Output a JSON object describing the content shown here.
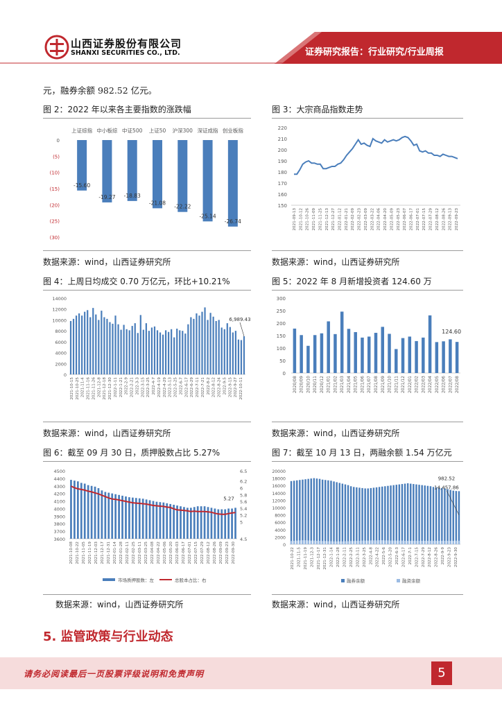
{
  "header": {
    "company_cn": "山西证券股份有限公司",
    "company_en": "SHANXI SECURITIES CO., LTD.",
    "report_type": "证券研究报告：行业研究/行业周报",
    "brand_color": "#c0282e"
  },
  "intro_text": "元，融券余额 982.52 亿元。",
  "source_text": "数据来源：wind，山西证券研究所",
  "figures": {
    "fig2": {
      "title": "图 2：2022 年以来各主要指数的涨跌幅"
    },
    "fig3": {
      "title": "图 3：大宗商品指数走势"
    },
    "fig4": {
      "title": "图 4：上周日均成交 0.70 万亿元，环比+10.21%"
    },
    "fig5": {
      "title": "图 5：2022 年 8 月新增投资者 124.60 万"
    },
    "fig6": {
      "title": "图 6：截至 09 月 30 日，质押股数占比 5.27%"
    },
    "fig7": {
      "title": "图 7：截至 10 月 13 日，两融余额 1.54 万亿元"
    }
  },
  "section_title": "5. 监管政策与行业动态",
  "footer": {
    "disclaimer": "请务必阅读最后一页股票评级说明和免责声明",
    "page_number": "5"
  },
  "chart_data": [
    {
      "id": "fig2",
      "type": "bar",
      "categories": [
        "上证综指",
        "中小板综",
        "中证500",
        "上证50",
        "沪深300",
        "深证成指",
        "创业板指"
      ],
      "values": [
        -15.6,
        -19.27,
        -18.83,
        -21.08,
        -22.22,
        -25.14,
        -26.74
      ],
      "data_labels": [
        "-15.60",
        "-19.27",
        "-18.83",
        "-21.08",
        "-22.22",
        "-25.14",
        "-26.74"
      ],
      "yticks": [
        "0",
        "(5)",
        "(10)",
        "(15)",
        "(20)",
        "(25)",
        "(30)"
      ],
      "ylim": [
        -30,
        0
      ],
      "color": "#4a7ebb"
    },
    {
      "id": "fig3",
      "type": "line",
      "ylim": [
        150,
        220
      ],
      "yticks": [
        150,
        160,
        170,
        180,
        190,
        200,
        210,
        220
      ],
      "xticks": [
        "2021-09-13",
        "2021-10-12",
        "2021-10-26",
        "2021-11-09",
        "2021-11-25",
        "2021-12-13",
        "2021-12-27",
        "2022-01-12",
        "2022-01-21",
        "2022-02-09",
        "2022-02-23",
        "2022-03-09",
        "2022-03-22",
        "2022-04-06",
        "2022-04-20",
        "2022-05-09",
        "2022-05-23",
        "2022-06-07",
        "2022-06-17",
        "2022-07-01",
        "2022-07-15",
        "2022-07-29",
        "2022-08-12",
        "2022-08-26",
        "2022-09-13",
        "2022-09-23"
      ],
      "values": [
        178,
        178,
        182,
        187,
        189,
        190,
        188,
        188,
        187,
        187,
        183,
        183,
        184,
        185,
        185,
        187,
        188,
        191,
        195,
        198,
        201,
        205,
        209,
        205,
        206,
        204,
        203,
        210,
        208,
        207,
        206,
        209,
        207,
        208,
        209,
        208,
        209,
        211,
        212,
        211,
        208,
        204,
        205,
        199,
        198,
        199,
        197,
        197,
        195,
        195,
        194,
        196,
        195,
        194,
        194,
        193,
        192
      ],
      "color": "#4a7ebb"
    },
    {
      "id": "fig4",
      "type": "bar",
      "ylim": [
        0,
        14000
      ],
      "yticks": [
        0,
        2000,
        4000,
        6000,
        8000,
        10000,
        12000,
        14000
      ],
      "xticks": [
        "2021-10-15",
        "2021-10-25",
        "2021-11-4",
        "2021-11-16",
        "2021-11-26",
        "2021-12-8",
        "2021-12-18",
        "2021-12-30",
        "2022-1-11",
        "2022-1-21",
        "2022-2-9",
        "2022-2-21",
        "2022-3-3",
        "2022-3-15",
        "2022-3-25",
        "2022-4-7",
        "2022-4-19",
        "2022-4-29",
        "2022-5-13",
        "2022-5-25",
        "2022-6-7",
        "2022-6-17",
        "2022-6-29",
        "2022-7-11",
        "2022-7-21",
        "2022-8-2",
        "2022-8-12",
        "2022-8-24",
        "2022-9-5",
        "2022-9-15",
        "2022-9-27",
        "2022-10-11"
      ],
      "values": [
        9800,
        10200,
        10800,
        11200,
        10800,
        11500,
        11800,
        10500,
        12200,
        11000,
        10000,
        11700,
        10500,
        10200,
        9600,
        9300,
        10800,
        9200,
        8200,
        9100,
        8300,
        8100,
        8900,
        9400,
        7600,
        10900,
        8200,
        9400,
        8000,
        8600,
        8800,
        8100,
        7700,
        7300,
        8100,
        7800,
        8300,
        6800,
        8400,
        8100,
        8000,
        7500,
        9200,
        10500,
        10200,
        11200,
        10800,
        11500,
        12300,
        10000,
        11300,
        10600,
        9800,
        10000,
        8600,
        8300,
        9400,
        8700,
        7700,
        8000,
        6400,
        6300,
        7000
      ],
      "last_label": "6,989.43",
      "color": "#4a7ebb"
    },
    {
      "id": "fig5",
      "type": "bar",
      "ylim": [
        0,
        300
      ],
      "yticks": [
        0,
        50,
        100,
        150,
        200,
        250,
        300
      ],
      "categories": [
        "2020/08",
        "2020/09",
        "2020/10",
        "2020/11",
        "2020/12",
        "2021/01",
        "2021/02",
        "2021/03",
        "2021/04",
        "2021/05",
        "2021/06",
        "2021/07",
        "2021/08",
        "2021/09",
        "2021/10",
        "2021/11",
        "2021/12",
        "2022/01",
        "2022/02",
        "2022/03",
        "2022/04",
        "2022/05",
        "2022/06",
        "2022/07",
        "2022/08"
      ],
      "values": [
        178,
        152,
        109,
        152,
        159,
        207,
        156,
        246,
        177,
        164,
        142,
        146,
        161,
        185,
        157,
        96,
        140,
        146,
        128,
        142,
        231,
        124,
        127,
        135,
        124.6
      ],
      "last_label": "124.60",
      "color": "#4a7ebb"
    },
    {
      "id": "fig6",
      "type": "bar-line",
      "ylim_left": [
        3600,
        4500
      ],
      "yticks_left": [
        3600,
        3700,
        3800,
        3900,
        4000,
        4100,
        4200,
        4300,
        4400,
        4500
      ],
      "ylim_right": [
        4.5,
        6.5
      ],
      "yticks_right": [
        4.5,
        5,
        5.2,
        5.4,
        5.6,
        5.8,
        6,
        6.2,
        6.5
      ],
      "ytick_labels_right": [
        "4.5",
        "5",
        "5.2",
        "5.4",
        "5.6",
        "5.8",
        "6",
        "6.2",
        "6.5"
      ],
      "xticks": [
        "2021-10-08",
        "2021-10-22",
        "2021-11-05",
        "2021-11-19",
        "2021-12-03",
        "2021-12-17",
        "2021-12-31",
        "2022-01-14",
        "2022-01-28",
        "2022-02-11",
        "2022-02-25",
        "2022-03-11",
        "2022-03-25",
        "2022-04-08",
        "2022-04-22",
        "2022-05-06",
        "2022-05-20",
        "2022-06-03",
        "2022-06-17",
        "2022-07-01",
        "2022-07-15",
        "2022-07-29",
        "2022-08-12",
        "2022-08-26",
        "2022-09-09",
        "2022-09-23",
        "2022-09-30"
      ],
      "bar_values": [
        4380,
        4370,
        4360,
        4340,
        4330,
        4310,
        4300,
        4290,
        4270,
        4240,
        4220,
        4210,
        4200,
        4190,
        4180,
        4170,
        4160,
        4150,
        4145,
        4140,
        4135,
        4130,
        4120,
        4110,
        4100,
        4090,
        4085,
        4080,
        4070,
        4060,
        4050,
        4040,
        4030,
        4020,
        4010,
        4010,
        4020,
        4030,
        4030,
        4030,
        4020,
        4010,
        4000,
        3990,
        3990,
        3990,
        4000,
        4000,
        4010
      ],
      "line_values": [
        6.05,
        6.0,
        5.97,
        5.95,
        5.93,
        5.9,
        5.88,
        5.85,
        5.82,
        5.78,
        5.74,
        5.7,
        5.67,
        5.66,
        5.64,
        5.62,
        5.6,
        5.58,
        5.56,
        5.55,
        5.54,
        5.53,
        5.52,
        5.5,
        5.48,
        5.47,
        5.46,
        5.45,
        5.43,
        5.42,
        5.38,
        5.35,
        5.34,
        5.33,
        5.32,
        5.3,
        5.31,
        5.3,
        5.3,
        5.3,
        5.29,
        5.28,
        5.25,
        5.23,
        5.22,
        5.22,
        5.24,
        5.26,
        5.27
      ],
      "last_label": "5.27",
      "legend": [
        "市场质押股数：左",
        "总股本占比：右"
      ],
      "legend_placement": "bottom",
      "bar_color": "#4a7ebb",
      "line_color": "#c0282e"
    },
    {
      "id": "fig7",
      "type": "bar",
      "ylim": [
        0,
        20000
      ],
      "yticks": [
        0,
        2000,
        4000,
        6000,
        8000,
        10000,
        12000,
        14000,
        16000,
        18000,
        20000
      ],
      "xticks": [
        "2021-10-22",
        "2021-11-5",
        "2021-11-19",
        "2021-12-3",
        "2021-12-17",
        "2021-12-31",
        "2022-1-14",
        "2022-1-28",
        "2022-2-11",
        "2022-2-25",
        "2022-3-11",
        "2022-3-25",
        "2022-4-8",
        "2022-4-22",
        "2022-5-6",
        "2022-5-20",
        "2022-6-3",
        "2022-6-17",
        "2022-7-1",
        "2022-7-15",
        "2022-7-29",
        "2022-8-12",
        "2022-8-26",
        "2022-9-9",
        "2022-9-23",
        "2022-9-30"
      ],
      "financing": [
        17200,
        17300,
        17400,
        17500,
        17600,
        17700,
        17800,
        17900,
        18000,
        17900,
        17800,
        17600,
        17500,
        17400,
        17300,
        17100,
        16900,
        16700,
        16500,
        16300,
        16100,
        15800,
        15600,
        15500,
        15400,
        15300,
        15200,
        15200,
        15300,
        15400,
        15500,
        15600,
        15700,
        15800,
        15900,
        16000,
        16100,
        16200,
        16300,
        16400,
        16500,
        16600,
        16500,
        16400,
        16300,
        16200,
        16100,
        16000,
        15900,
        15800,
        15600,
        15500,
        15400,
        15300,
        15200,
        15000,
        14800,
        14600,
        14500,
        14458
      ],
      "lending": [
        900,
        950,
        1000,
        1050,
        1100,
        1100,
        1050,
        1000,
        1000,
        950,
        950,
        900,
        900,
        850,
        850,
        800,
        800,
        800,
        800,
        850,
        850,
        900,
        900,
        950,
        950,
        1000,
        1000,
        1000,
        1050,
        1050,
        1050,
        1100,
        1100,
        1050,
        1050,
        1000,
        1000,
        1000,
        1000,
        1000,
        950,
        950,
        950,
        950,
        950,
        950,
        950,
        950,
        950,
        950,
        950,
        950,
        950,
        950,
        950,
        950,
        950,
        950,
        982.52,
        982.52
      ],
      "labels": [
        "14,457.86",
        "982.52"
      ],
      "legend": [
        "融券余额",
        "融资余额"
      ],
      "legend_placement": "bottom",
      "color": "#4a7ebb"
    }
  ]
}
